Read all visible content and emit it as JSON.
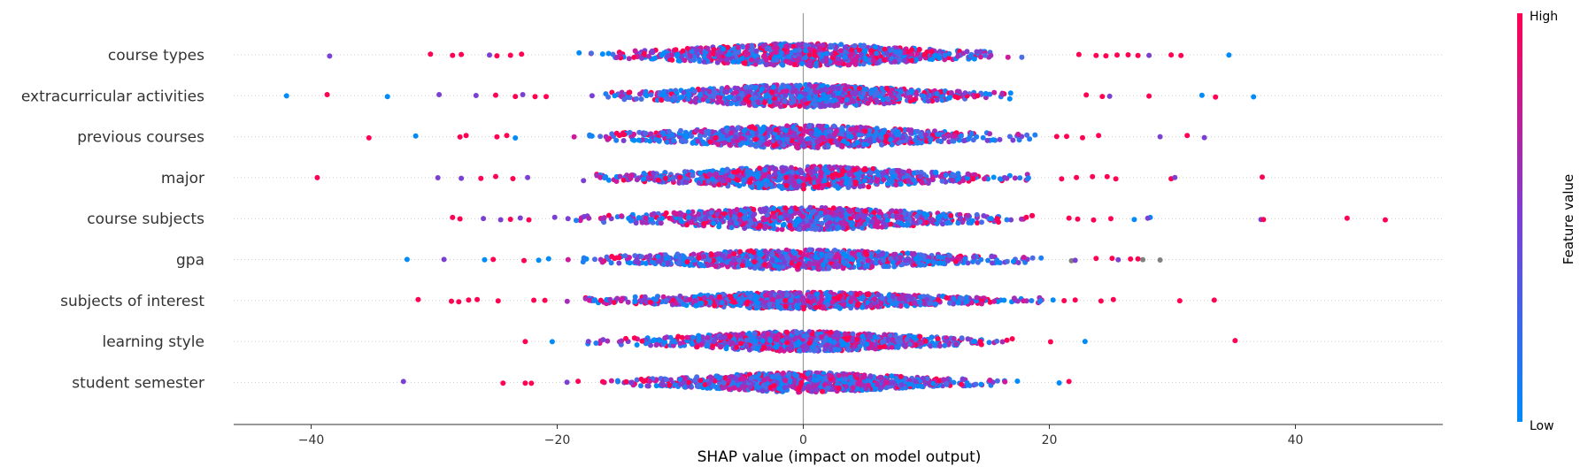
{
  "chart_data": {
    "type": "scatter",
    "subtype": "shap-beeswarm",
    "title": "",
    "xlabel": "SHAP value (impact on model output)",
    "ylabel": "",
    "xlim": [
      -46.5,
      52.5
    ],
    "xticks": [
      -40,
      -20,
      0,
      20,
      40
    ],
    "xtick_labels": [
      "−40",
      "−20",
      "0",
      "20",
      "40"
    ],
    "features": [
      {
        "name": "course types",
        "outliers": [
          [
            -38.5,
            "purple"
          ],
          [
            -30.3,
            "pink"
          ],
          [
            -28.5,
            "pink"
          ],
          [
            -27.8,
            "pink"
          ],
          [
            -25.5,
            "purple"
          ],
          [
            -24.9,
            "pink"
          ],
          [
            -23.8,
            "pink"
          ],
          [
            -22.9,
            "pink"
          ],
          [
            22.4,
            "pink"
          ],
          [
            23.8,
            "pink"
          ],
          [
            24.6,
            "pink"
          ],
          [
            25.5,
            "pink"
          ],
          [
            26.4,
            "pink"
          ],
          [
            27.2,
            "pink"
          ],
          [
            28.1,
            "purple"
          ],
          [
            29.9,
            "pink"
          ],
          [
            30.7,
            "pink"
          ],
          [
            34.6,
            "blue"
          ]
        ],
        "spread": 18.5,
        "width": 7
      },
      {
        "name": "extracurricular activities",
        "outliers": [
          [
            -42.0,
            "blue"
          ],
          [
            -38.7,
            "pink"
          ],
          [
            -33.8,
            "blue"
          ],
          [
            -29.6,
            "purple"
          ],
          [
            -26.6,
            "purple"
          ],
          [
            -25.0,
            "pink"
          ],
          [
            -23.4,
            "pink"
          ],
          [
            -22.8,
            "purple"
          ],
          [
            -21.8,
            "pink"
          ],
          [
            -20.9,
            "pink"
          ],
          [
            23.0,
            "pink"
          ],
          [
            24.3,
            "pink"
          ],
          [
            24.9,
            "purple"
          ],
          [
            28.1,
            "pink"
          ],
          [
            32.4,
            "blue"
          ],
          [
            33.5,
            "pink"
          ],
          [
            36.6,
            "blue"
          ]
        ],
        "spread": 17.5,
        "width": 7
      },
      {
        "name": "previous courses",
        "outliers": [
          [
            -35.3,
            "pink"
          ],
          [
            -31.5,
            "blue"
          ],
          [
            -27.9,
            "pink"
          ],
          [
            -27.4,
            "pink"
          ],
          [
            -24.9,
            "pink"
          ],
          [
            -24.1,
            "pink"
          ],
          [
            -23.4,
            "blue"
          ],
          [
            20.6,
            "pink"
          ],
          [
            21.4,
            "pink"
          ],
          [
            22.7,
            "pink"
          ],
          [
            24.0,
            "pink"
          ],
          [
            29.0,
            "purple"
          ],
          [
            31.2,
            "pink"
          ],
          [
            32.6,
            "purple"
          ]
        ],
        "spread": 19,
        "width": 7
      },
      {
        "name": "major",
        "outliers": [
          [
            -39.5,
            "pink"
          ],
          [
            -29.7,
            "purple"
          ],
          [
            -27.8,
            "purple"
          ],
          [
            -26.2,
            "pink"
          ],
          [
            -25.0,
            "pink"
          ],
          [
            -23.6,
            "pink"
          ],
          [
            -22.4,
            "purple"
          ],
          [
            21.0,
            "pink"
          ],
          [
            22.2,
            "pink"
          ],
          [
            23.5,
            "pink"
          ],
          [
            24.7,
            "pink"
          ],
          [
            25.4,
            "pink"
          ],
          [
            29.9,
            "pink"
          ],
          [
            30.2,
            "purple"
          ],
          [
            37.3,
            "pink"
          ]
        ],
        "spread": 18.5,
        "width": 7
      },
      {
        "name": "course subjects",
        "outliers": [
          [
            -28.5,
            "pink"
          ],
          [
            -27.9,
            "pink"
          ],
          [
            -26.0,
            "purple"
          ],
          [
            -24.6,
            "purple"
          ],
          [
            -23.8,
            "pink"
          ],
          [
            -23.0,
            "purple"
          ],
          [
            -22.3,
            "pink"
          ],
          [
            -20.2,
            "purple"
          ],
          [
            21.6,
            "pink"
          ],
          [
            22.3,
            "pink"
          ],
          [
            23.6,
            "pink"
          ],
          [
            25.0,
            "pink"
          ],
          [
            26.9,
            "blue"
          ],
          [
            28.2,
            "blue"
          ],
          [
            28.0,
            "purple"
          ],
          [
            37.2,
            "purple"
          ],
          [
            37.4,
            "pink"
          ],
          [
            44.2,
            "pink"
          ],
          [
            47.3,
            "pink"
          ]
        ],
        "spread": 19.5,
        "width": 7
      },
      {
        "name": "gpa",
        "outliers": [
          [
            -32.2,
            "blue"
          ],
          [
            -29.2,
            "purple"
          ],
          [
            -25.9,
            "blue"
          ],
          [
            -25.2,
            "pink"
          ],
          [
            -22.7,
            "pink"
          ],
          [
            -21.5,
            "blue"
          ],
          [
            -20.7,
            "blue"
          ],
          [
            21.8,
            "gray"
          ],
          [
            22.1,
            "purple"
          ],
          [
            23.8,
            "pink"
          ],
          [
            25.1,
            "pink"
          ],
          [
            25.6,
            "purple"
          ],
          [
            26.6,
            "pink"
          ],
          [
            27.2,
            "pink"
          ],
          [
            27.6,
            "gray"
          ],
          [
            29.0,
            "gray"
          ]
        ],
        "spread": 19.5,
        "width": 6
      },
      {
        "name": "subjects of interest",
        "outliers": [
          [
            -31.3,
            "pink"
          ],
          [
            -28.6,
            "pink"
          ],
          [
            -28.0,
            "pink"
          ],
          [
            -27.2,
            "pink"
          ],
          [
            -26.5,
            "pink"
          ],
          [
            -24.8,
            "pink"
          ],
          [
            -21.9,
            "pink"
          ],
          [
            -21.0,
            "pink"
          ],
          [
            20.3,
            "blue"
          ],
          [
            21.2,
            "pink"
          ],
          [
            22.1,
            "pink"
          ],
          [
            24.2,
            "pink"
          ],
          [
            25.2,
            "pink"
          ],
          [
            30.6,
            "pink"
          ],
          [
            33.4,
            "pink"
          ]
        ],
        "spread": 19.5,
        "width": 5
      },
      {
        "name": "learning style",
        "outliers": [
          [
            -22.6,
            "pink"
          ],
          [
            -20.4,
            "blue"
          ],
          [
            20.1,
            "pink"
          ],
          [
            22.9,
            "blue"
          ],
          [
            35.1,
            "pink"
          ]
        ],
        "spread": 17.8,
        "width": 6
      },
      {
        "name": "student semester",
        "outliers": [
          [
            -32.5,
            "purple"
          ],
          [
            -24.4,
            "pink"
          ],
          [
            -22.6,
            "pink"
          ],
          [
            -22.1,
            "pink"
          ],
          [
            -19.2,
            "purple"
          ],
          [
            -18.3,
            "pink"
          ],
          [
            -16.3,
            "pink"
          ],
          [
            -14.4,
            "pink"
          ],
          [
            -14.0,
            "purple"
          ],
          [
            17.4,
            "blue"
          ],
          [
            20.8,
            "blue"
          ],
          [
            21.6,
            "pink"
          ]
        ],
        "spread": 16.5,
        "width": 6
      }
    ],
    "colors": {
      "low": "#008bfb",
      "mid": "#7c3fd3",
      "high": "#ff0052",
      "gray": "#808080",
      "zero_line": "#999999",
      "grid": "#cccccc"
    },
    "colorbar": {
      "label": "Feature value",
      "high_label": "High",
      "low_label": "Low"
    }
  }
}
